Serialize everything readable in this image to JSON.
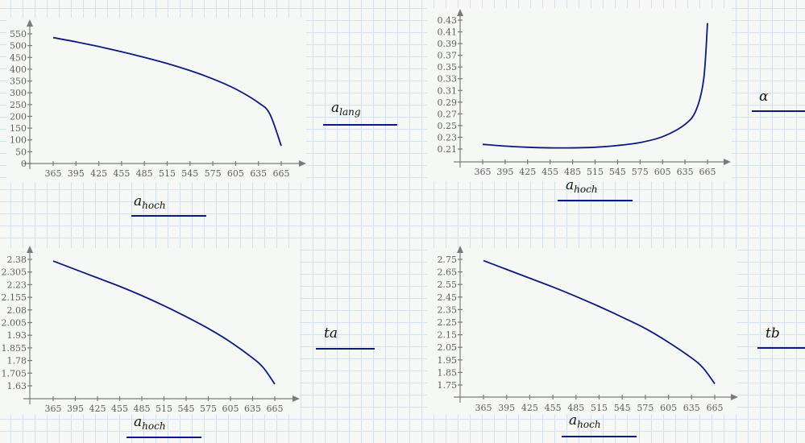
{
  "worksheet": {
    "colors": {
      "curve": "#0a1a80",
      "axis": "#7a7a7a",
      "grid": "#cfe1f4",
      "background": "#f6f8f6"
    }
  },
  "chart_data": [
    {
      "id": "a_lang_vs_a_hoch",
      "type": "line",
      "title": "",
      "xlabel": "a_hoch",
      "ylabel": "a_lang",
      "xlabel_main": "a",
      "xlabel_sub": "hoch",
      "ylabel_main": "a",
      "ylabel_sub": "lang",
      "x_ticks": [
        "365",
        "395",
        "425",
        "455",
        "485",
        "515",
        "545",
        "575",
        "605",
        "635",
        "665"
      ],
      "y_ticks": [
        "0",
        "50",
        "100",
        "150",
        "200",
        "250",
        "300",
        "350",
        "400",
        "450",
        "500",
        "550"
      ],
      "xlim": [
        365,
        665
      ],
      "ylim": [
        0,
        550
      ],
      "grid": false,
      "x": [
        365,
        395,
        425,
        455,
        485,
        515,
        545,
        575,
        605,
        635,
        650,
        665
      ],
      "values": [
        534,
        516,
        496,
        474,
        450,
        424,
        394,
        359,
        316,
        258,
        210,
        75
      ]
    },
    {
      "id": "alpha_vs_a_hoch",
      "type": "line",
      "title": "",
      "xlabel": "a_hoch",
      "ylabel": "α",
      "xlabel_main": "a",
      "xlabel_sub": "hoch",
      "ylabel_main": "α",
      "ylabel_sub": "",
      "x_ticks": [
        "365",
        "395",
        "425",
        "455",
        "485",
        "515",
        "545",
        "575",
        "605",
        "635",
        "665"
      ],
      "y_ticks": [
        "0.21",
        "0.23",
        "0.25",
        "0.27",
        "0.29",
        "0.31",
        "0.33",
        "0.35",
        "0.37",
        "0.39",
        "0.41",
        "0.43"
      ],
      "xlim": [
        365,
        665
      ],
      "ylim": [
        0.21,
        0.43
      ],
      "grid": false,
      "x": [
        365,
        395,
        425,
        455,
        485,
        515,
        545,
        575,
        605,
        635,
        650,
        660,
        665
      ],
      "values": [
        0.218,
        0.215,
        0.213,
        0.212,
        0.212,
        0.213,
        0.216,
        0.221,
        0.231,
        0.252,
        0.277,
        0.33,
        0.425
      ]
    },
    {
      "id": "ta_vs_a_hoch",
      "type": "line",
      "title": "",
      "xlabel": "a_hoch",
      "ylabel": "ta",
      "xlabel_main": "a",
      "xlabel_sub": "hoch",
      "ylabel_main": "ta",
      "ylabel_sub": "",
      "x_ticks": [
        "365",
        "395",
        "425",
        "455",
        "485",
        "515",
        "545",
        "575",
        "605",
        "635",
        "665"
      ],
      "y_ticks": [
        "1.63",
        "1.705",
        "1.78",
        "1.855",
        "1.93",
        "2.005",
        "2.08",
        "2.155",
        "2.23",
        "2.305",
        "2.38"
      ],
      "xlim": [
        365,
        665
      ],
      "ylim": [
        1.63,
        2.38
      ],
      "grid": false,
      "x": [
        365,
        395,
        425,
        455,
        485,
        515,
        545,
        575,
        605,
        635,
        650,
        665
      ],
      "values": [
        2.37,
        2.32,
        2.27,
        2.22,
        2.165,
        2.105,
        2.04,
        1.97,
        1.89,
        1.795,
        1.735,
        1.64
      ]
    },
    {
      "id": "tb_vs_a_hoch",
      "type": "line",
      "title": "",
      "xlabel": "a_hoch",
      "ylabel": "tb",
      "xlabel_main": "a",
      "xlabel_sub": "hoch",
      "ylabel_main": "tb",
      "ylabel_sub": "",
      "x_ticks": [
        "365",
        "395",
        "425",
        "455",
        "485",
        "515",
        "545",
        "575",
        "605",
        "635",
        "665"
      ],
      "y_ticks": [
        "1.75",
        "1.85",
        "1.95",
        "2.05",
        "2.15",
        "2.25",
        "2.35",
        "2.45",
        "2.55",
        "2.65",
        "2.75"
      ],
      "xlim": [
        365,
        665
      ],
      "ylim": [
        1.75,
        2.75
      ],
      "grid": false,
      "x": [
        365,
        395,
        425,
        455,
        485,
        515,
        545,
        575,
        605,
        635,
        650,
        665
      ],
      "values": [
        2.74,
        2.67,
        2.6,
        2.53,
        2.455,
        2.375,
        2.29,
        2.2,
        2.09,
        1.965,
        1.885,
        1.76
      ]
    }
  ],
  "labels": {
    "chart1_x": {
      "main": "a",
      "sub": "hoch"
    },
    "chart1_y": {
      "main": "a",
      "sub": "lang"
    },
    "chart2_x": {
      "main": "a",
      "sub": "hoch"
    },
    "chart2_y": {
      "main": "α",
      "sub": ""
    },
    "chart3_x": {
      "main": "a",
      "sub": "hoch"
    },
    "chart3_y": {
      "main": "ta",
      "sub": ""
    },
    "chart4_x": {
      "main": "a",
      "sub": "hoch"
    },
    "chart4_y": {
      "main": "tb",
      "sub": ""
    }
  }
}
